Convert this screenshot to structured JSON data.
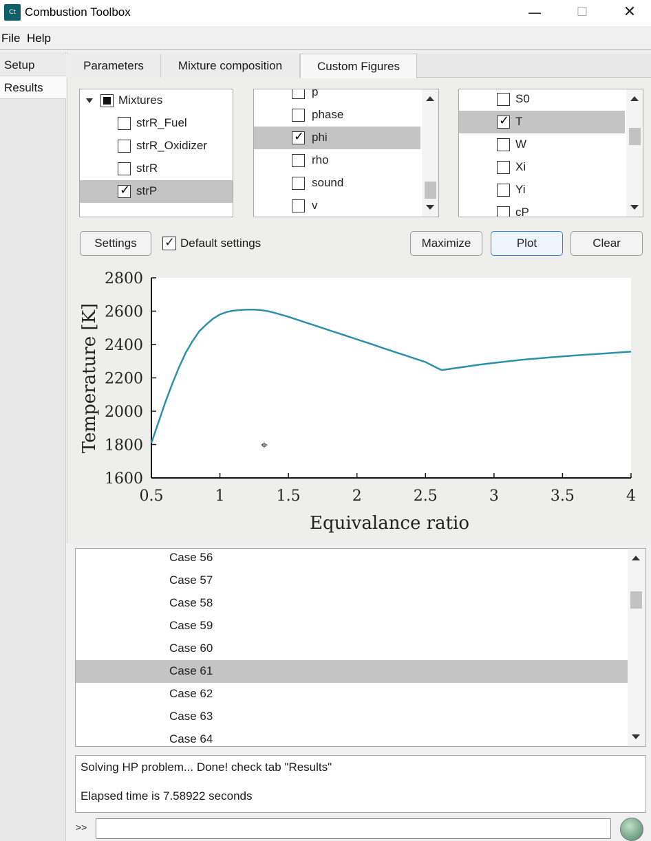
{
  "window": {
    "app_icon_text": "Ct",
    "title": "Combustion Toolbox",
    "minimize_glyph": "—",
    "maximize_glyph": "☐",
    "close_glyph": "✕"
  },
  "menubar": {
    "file": "File",
    "help": "Help"
  },
  "left_tabs": {
    "setup": "Setup",
    "results": "Results"
  },
  "top_tabs": {
    "parameters": "Parameters",
    "mixture_composition": "Mixture composition",
    "custom_figures": "Custom Figures"
  },
  "tree": {
    "root": "Mixtures",
    "items": [
      {
        "label": "strR_Fuel",
        "checked": false
      },
      {
        "label": "strR_Oxidizer",
        "checked": false
      },
      {
        "label": "strR",
        "checked": false
      },
      {
        "label": "strP",
        "checked": true
      }
    ]
  },
  "xvars": {
    "items": [
      {
        "label": "p",
        "checked": false
      },
      {
        "label": "phase",
        "checked": false
      },
      {
        "label": "phi",
        "checked": true
      },
      {
        "label": "rho",
        "checked": false
      },
      {
        "label": "sound",
        "checked": false
      },
      {
        "label": "v",
        "checked": false
      }
    ]
  },
  "yvars": {
    "items": [
      {
        "label": "S0",
        "checked": false
      },
      {
        "label": "T",
        "checked": true
      },
      {
        "label": "W",
        "checked": false
      },
      {
        "label": "Xi",
        "checked": false
      },
      {
        "label": "Yi",
        "checked": false
      },
      {
        "label": "cP",
        "checked": false
      }
    ]
  },
  "controls": {
    "settings": "Settings",
    "default_settings_label": "Default settings",
    "default_settings_checked": true,
    "maximize": "Maximize",
    "plot": "Plot",
    "clear": "Clear"
  },
  "check_glyph": "✓",
  "crosshair_glyph": "⌖",
  "chart_data": {
    "type": "line",
    "xlabel": "Equivalance ratio",
    "ylabel": "Temperature [K]",
    "xlim": [
      0.5,
      4
    ],
    "ylim": [
      1600,
      2800
    ],
    "xticks": [
      "0.5",
      "1",
      "1.5",
      "2",
      "2.5",
      "3",
      "3.5",
      "4"
    ],
    "yticks": [
      "1600",
      "1800",
      "2000",
      "2200",
      "2400",
      "2600",
      "2800"
    ],
    "grid": false,
    "line_color": "#2e8fa8",
    "x": [
      0.5,
      0.55,
      0.6,
      0.65,
      0.7,
      0.75,
      0.8,
      0.85,
      0.9,
      0.95,
      1.0,
      1.05,
      1.1,
      1.15,
      1.2,
      1.25,
      1.3,
      1.35,
      1.4,
      1.5,
      1.6,
      1.7,
      1.8,
      1.9,
      2.0,
      2.1,
      2.2,
      2.3,
      2.4,
      2.5,
      2.6,
      2.62,
      2.7,
      2.8,
      2.9,
      3.0,
      3.2,
      3.4,
      3.6,
      3.8,
      4.0
    ],
    "y": [
      1810,
      1930,
      2050,
      2160,
      2260,
      2350,
      2420,
      2480,
      2520,
      2555,
      2580,
      2595,
      2603,
      2607,
      2609,
      2609,
      2606,
      2600,
      2590,
      2566,
      2539,
      2512,
      2485,
      2458,
      2431,
      2404,
      2376,
      2349,
      2322,
      2295,
      2253,
      2247,
      2256,
      2268,
      2280,
      2290,
      2308,
      2322,
      2335,
      2346,
      2357
    ]
  },
  "cases": [
    "Case 56",
    "Case 57",
    "Case 58",
    "Case 59",
    "Case 60",
    "Case 61",
    "Case 62",
    "Case 63",
    "Case 64"
  ],
  "selected_case": "Case 61",
  "console": {
    "line1": "Solving HP problem... Done! check tab \"Results\"",
    "line2": "Elapsed time is 7.58922 seconds"
  },
  "command": {
    "prompt": ">>",
    "value": ""
  }
}
